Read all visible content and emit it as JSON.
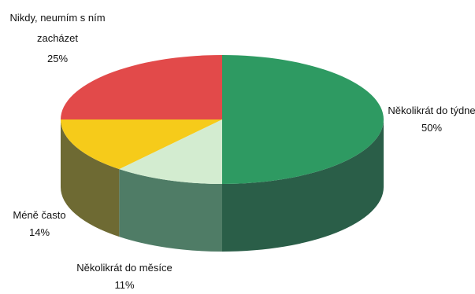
{
  "chart_data": {
    "type": "pie",
    "title": "",
    "style": "3d",
    "slices": [
      {
        "name": "Několikrát do týdne",
        "value": 50,
        "pct_label": "50%",
        "color": "#2e9a62",
        "side_color": "#2a5e48"
      },
      {
        "name": "Několikrát do měsíce",
        "value": 11,
        "pct_label": "11%",
        "color": "#d3ecd0",
        "side_color": "#4f7c66"
      },
      {
        "name": "Méně často",
        "value": 14,
        "pct_label": "14%",
        "color": "#f6cb1a",
        "side_color": "#6e6a33"
      },
      {
        "name": "Nikdy, neumím s ním zacházet",
        "value": 25,
        "pct_label": "25%",
        "color": "#e24a4a",
        "side_color": "#8a2c2c"
      }
    ],
    "labels": {
      "weekly": {
        "lines": [
          "Několikrát do týdne",
          "50%"
        ]
      },
      "monthly": {
        "lines": [
          "Několikrát do měsíce",
          "11%"
        ]
      },
      "less": {
        "lines": [
          "Méně často",
          "14%"
        ]
      },
      "never": {
        "lines": [
          "Nikdy, neumím s ním",
          "zacházet",
          "25%"
        ]
      }
    }
  }
}
